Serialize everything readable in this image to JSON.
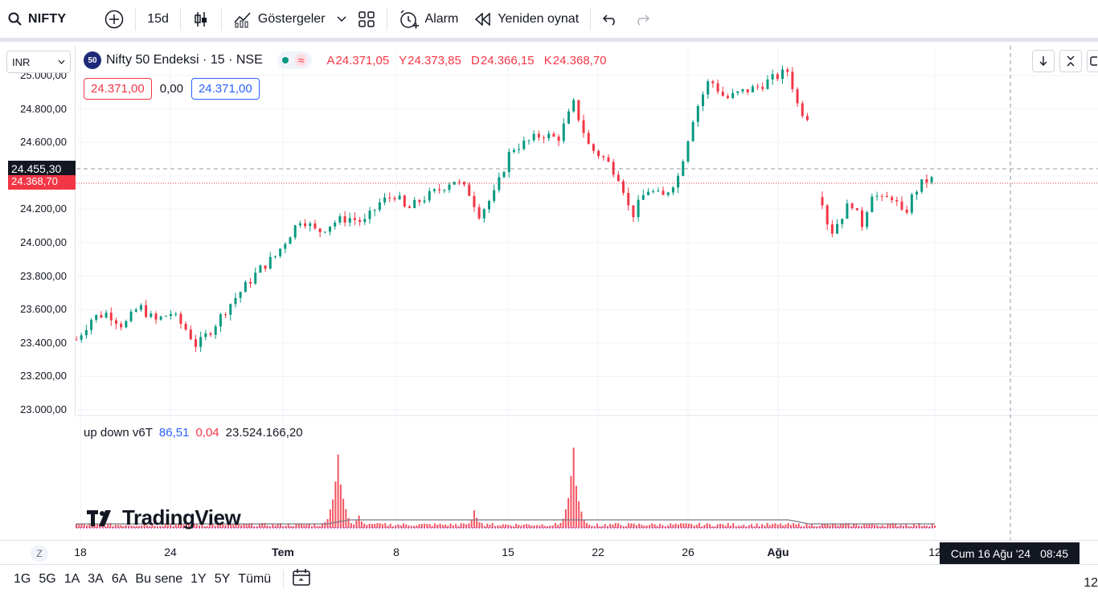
{
  "toolbar": {
    "symbol": "NIFTY",
    "interval": "15d",
    "indicators_label": "Göstergeler",
    "alarm_label": "Alarm",
    "replay_label": "Yeniden oynat"
  },
  "currency": "INR",
  "legend": {
    "badge": "50",
    "title": "Nifty 50 Endeksi · 15 · NSE",
    "o_key": "A",
    "o_val": "24.371,05",
    "h_key": "Y",
    "h_val": "24.373,85",
    "l_key": "D",
    "l_val": "24.366,15",
    "c_key": "K",
    "c_val": "24.368,70"
  },
  "price_boxes": {
    "sell": "24.371,00",
    "spread": "0,00",
    "buy": "24.371,00"
  },
  "price_axis": {
    "labels": [
      "25.000,00",
      "24.800,00",
      "24.600,00",
      "24.200,00",
      "24.000,00",
      "23.800,00",
      "23.600,00",
      "23.400,00",
      "23.200,00",
      "23.000,00"
    ],
    "crosshair_price": "24.455,30",
    "last_price": "24.368,70"
  },
  "indicator": {
    "name": "up down v6T",
    "v1": "86,51",
    "v2": "0,04",
    "v3": "23.524.166,20"
  },
  "watermark": "TradingView",
  "time_axis": {
    "z_label": "Z",
    "labels": [
      "18",
      "24",
      "Tem",
      "8",
      "15",
      "22",
      "26",
      "Ağu",
      "12"
    ],
    "crosshair_date": "Cum 16 Ağu '24",
    "crosshair_time": "08:45"
  },
  "bottom": {
    "ranges": [
      "1G",
      "5G",
      "1A",
      "3A",
      "6A",
      "Bu sene",
      "1Y",
      "5Y",
      "Tümü"
    ],
    "right_text": "12"
  },
  "chart_data": {
    "type": "candlestick",
    "ylim": [
      23000,
      25050
    ],
    "x_ticks": [
      "18",
      "24",
      "Tem",
      "8",
      "15",
      "22",
      "26",
      "Ağu",
      "12"
    ],
    "path_points": [
      [
        0,
        23420
      ],
      [
        3,
        23550
      ],
      [
        6,
        23580
      ],
      [
        9,
        23500
      ],
      [
        12,
        23620
      ],
      [
        15,
        23530
      ],
      [
        18,
        23580
      ],
      [
        21,
        23480
      ],
      [
        23,
        23380
      ],
      [
        26,
        23490
      ],
      [
        29,
        23620
      ],
      [
        32,
        23730
      ],
      [
        35,
        23840
      ],
      [
        38,
        23920
      ],
      [
        41,
        24060
      ],
      [
        43,
        24150
      ],
      [
        46,
        24060
      ],
      [
        49,
        24120
      ],
      [
        52,
        24150
      ],
      [
        55,
        24120
      ],
      [
        58,
        24240
      ],
      [
        61,
        24290
      ],
      [
        63,
        24190
      ],
      [
        66,
        24260
      ],
      [
        69,
        24310
      ],
      [
        72,
        24380
      ],
      [
        75,
        24300
      ],
      [
        77,
        24170
      ],
      [
        80,
        24300
      ],
      [
        83,
        24560
      ],
      [
        86,
        24600
      ],
      [
        89,
        24650
      ],
      [
        92,
        24620
      ],
      [
        95,
        24830
      ],
      [
        98,
        24570
      ],
      [
        101,
        24500
      ],
      [
        104,
        24380
      ],
      [
        106,
        24150
      ],
      [
        109,
        24320
      ],
      [
        112,
        24270
      ],
      [
        115,
        24400
      ],
      [
        118,
        24770
      ],
      [
        121,
        24980
      ],
      [
        124,
        24860
      ],
      [
        127,
        24900
      ],
      [
        130,
        24930
      ],
      [
        133,
        24980
      ],
      [
        136,
        25030
      ],
      [
        138,
        24800
      ],
      [
        140,
        24750
      ],
      [
        142,
        24320
      ],
      [
        144,
        24050
      ],
      [
        146,
        24150
      ],
      [
        148,
        24250
      ],
      [
        150,
        24100
      ],
      [
        152,
        24300
      ],
      [
        154,
        24250
      ],
      [
        156,
        24280
      ],
      [
        158,
        24150
      ],
      [
        160,
        24300
      ],
      [
        162,
        24370
      ],
      [
        164,
        24380
      ]
    ],
    "volume_spikes": [
      {
        "x": 50,
        "value": 100
      },
      {
        "x": 54,
        "value": 15
      },
      {
        "x": 76,
        "value": 18
      },
      {
        "x": 95,
        "value": 100
      },
      {
        "x": 97,
        "value": 10
      }
    ],
    "volume_baseline": 5
  }
}
